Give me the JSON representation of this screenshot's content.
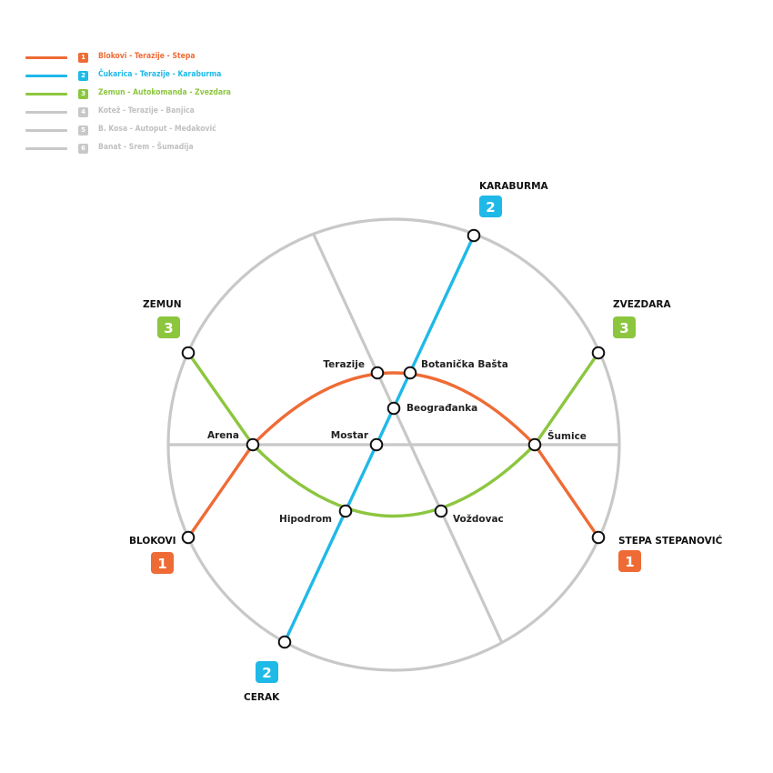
{
  "legend": [
    {
      "number": "1",
      "label": "Blokovi - Terazije - Stepa",
      "color": "#ef6b35"
    },
    {
      "number": "2",
      "label": "Čukarica - Terazije - Karaburma",
      "color": "#1fb9e8"
    },
    {
      "number": "3",
      "label": "Zemun - Autokomanda - Zvezdara",
      "color": "#8cc63f"
    },
    {
      "number": "4",
      "label": "Kotež - Terazije - Banjica",
      "color": "#c8c8c8"
    },
    {
      "number": "5",
      "label": "B. Kosa - Autoput - Medaković",
      "color": "#c8c8c8"
    },
    {
      "number": "6",
      "label": "Banat - Srem - Šumadija",
      "color": "#c8c8c8"
    }
  ],
  "stations": {
    "terazije": "Terazije",
    "botanicka": "Botanička Bašta",
    "beogradjanka": "Beograđanka",
    "arena": "Arena",
    "mostar": "Mostar",
    "sumice": "Šumice",
    "hipodrom": "Hipodrom",
    "vozdovac": "Voždovac"
  },
  "termini": {
    "karaburma": {
      "label": "KARABURMA",
      "line": "2"
    },
    "zemun": {
      "label": "ZEMUN",
      "line": "3"
    },
    "zvezdara": {
      "label": "ZVEZDARA",
      "line": "3"
    },
    "blokovi": {
      "label": "BLOKOVI",
      "line": "1"
    },
    "stepa": {
      "label": "STEPA STEPANOVIĆ",
      "line": "1"
    },
    "cerak": {
      "label": "CERAK",
      "line": "2"
    }
  },
  "colors": {
    "line1": "#ef6b35",
    "line2": "#1fb9e8",
    "line3": "#8cc63f",
    "inactive": "#c8c8c8"
  }
}
